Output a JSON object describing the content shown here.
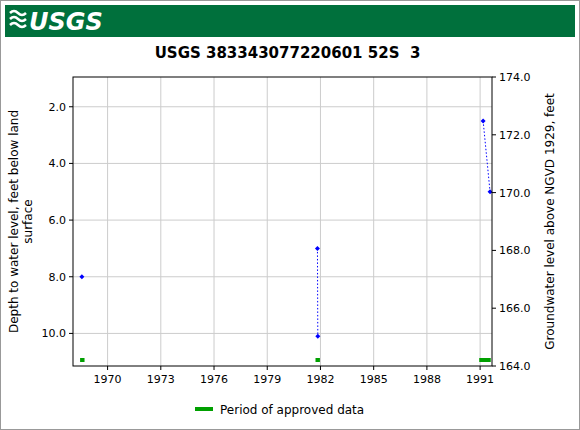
{
  "header": {
    "logo": "USGS"
  },
  "chart_data": {
    "type": "scatter",
    "title": "USGS 383343077220601 52S  3",
    "y_label": "Depth to water level, feet below land surface",
    "y2_label": "Groundwater level above NGVD 1929, feet",
    "x": [
      1968.55,
      null,
      1981.83,
      1981.85,
      null,
      1991.17,
      1991.56
    ],
    "series": [
      {
        "color": "#0000ff",
        "marker": "diamond",
        "line_style": "dotted",
        "values": [
          8.0,
          null,
          7.0,
          10.1,
          null,
          2.5,
          5.0
        ]
      }
    ],
    "xlim": [
      1968.05,
      1991.67
    ],
    "xticks": [
      1970,
      1973,
      1976,
      1979,
      1982,
      1985,
      1988,
      1991
    ],
    "ylim": [
      11.15,
      0.95
    ],
    "yticks": [
      {
        "value": 2,
        "label": "2.0"
      },
      {
        "value": 4,
        "label": "4.0"
      },
      {
        "value": 6,
        "label": "6.0"
      },
      {
        "value": 8,
        "label": "8.0"
      },
      {
        "value": 10,
        "label": "10.0"
      }
    ],
    "y2lim": [
      164,
      174
    ],
    "y2ticks": [
      {
        "value": 164,
        "label": "164.0"
      },
      {
        "value": 166,
        "label": "166.0"
      },
      {
        "value": 168,
        "label": "168.0"
      },
      {
        "value": 170,
        "label": "170.0"
      },
      {
        "value": 172,
        "label": "172.0"
      },
      {
        "value": 174,
        "label": "174.0"
      }
    ],
    "approved": {
      "label": "Period of approved data",
      "color": "#00a000",
      "periods": [
        [
          1968.45,
          1968.7
        ],
        [
          1981.72,
          1981.97
        ],
        [
          1990.95,
          1991.6
        ]
      ]
    },
    "grid": true,
    "legend": "bottom"
  }
}
